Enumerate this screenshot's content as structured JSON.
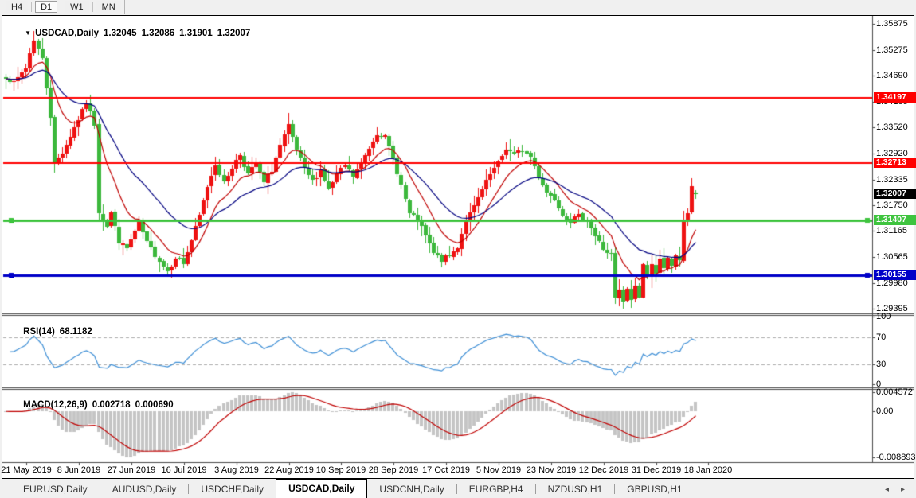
{
  "toolbar": {
    "timeframes": [
      {
        "label": "H4",
        "active": false
      },
      {
        "label": "D1",
        "active": true
      },
      {
        "label": "W1",
        "active": false
      },
      {
        "label": "MN",
        "active": false
      }
    ]
  },
  "chart_title": {
    "dropdown_icon": "▼",
    "symbol": "USDCAD,Daily",
    "open": "1.32045",
    "high": "1.32086",
    "low": "1.31901",
    "close": "1.32007"
  },
  "chart_data": [
    {
      "type": "candlestick",
      "symbol": "USDCAD",
      "timeframe": "Daily",
      "displayed_ohlc": {
        "open": 1.32045,
        "high": 1.32086,
        "low": 1.31901,
        "close": 1.32007
      },
      "y_ticks": [
        "1.35875",
        "1.35275",
        "1.34690",
        "1.34105",
        "1.33520",
        "1.32920",
        "1.32335",
        "1.31750",
        "1.31165",
        "1.30565",
        "1.29980",
        "1.29395"
      ],
      "ylim": [
        1.2925,
        1.3607
      ],
      "x_tick_dates": [
        "21 May 2019",
        "8 Jun 2019",
        "27 Jun 2019",
        "16 Jul 2019",
        "3 Aug 2019",
        "22 Aug 2019",
        "10 Sep 2019",
        "28 Sep 2019",
        "17 Oct 2019",
        "5 Nov 2019",
        "23 Nov 2019",
        "12 Dec 2019",
        "31 Dec 2019",
        "18 Jan 2020"
      ],
      "levels": [
        {
          "label": "1.34197",
          "price": 1.34197,
          "color": "#FF0000",
          "width": 2,
          "handles": false
        },
        {
          "label": "1.32713",
          "price": 1.32713,
          "color": "#FF0000",
          "width": 2,
          "handles": false
        },
        {
          "label": "1.31407",
          "price": 1.31407,
          "color": "#3FC43F",
          "width": 3,
          "handles": true
        },
        {
          "label": "1.30155",
          "price": 1.30155,
          "color": "#0000C8",
          "width": 3,
          "handles": true
        }
      ],
      "current_price": {
        "label": "1.32007",
        "price": 1.32007,
        "badge_color": "#000000"
      },
      "candle_count": 172,
      "colors": {
        "bull": "#EE1212",
        "bear": "#3CB83C",
        "ma_fast": "#C00000",
        "ma_slow": "#000080"
      },
      "ma_estimated_periods": {
        "fast": 10,
        "slow": 25
      },
      "grid": false,
      "noise_seed": 7,
      "close_path_anchors": [
        [
          0,
          1.3468
        ],
        [
          2,
          1.3452
        ],
        [
          5,
          1.3488
        ],
        [
          7,
          1.3553
        ],
        [
          9,
          1.3508
        ],
        [
          11,
          1.3378
        ],
        [
          12,
          1.327
        ],
        [
          14,
          1.3295
        ],
        [
          17,
          1.3352
        ],
        [
          20,
          1.3408
        ],
        [
          22,
          1.336
        ],
        [
          23,
          1.316
        ],
        [
          25,
          1.3128
        ],
        [
          26,
          1.3158
        ],
        [
          28,
          1.3092
        ],
        [
          30,
          1.3076
        ],
        [
          33,
          1.3135
        ],
        [
          35,
          1.3088
        ],
        [
          38,
          1.305
        ],
        [
          40,
          1.3025
        ],
        [
          42,
          1.3058
        ],
        [
          44,
          1.3042
        ],
        [
          46,
          1.3095
        ],
        [
          48,
          1.315
        ],
        [
          50,
          1.3218
        ],
        [
          52,
          1.327
        ],
        [
          54,
          1.3225
        ],
        [
          56,
          1.3262
        ],
        [
          58,
          1.329
        ],
        [
          60,
          1.3245
        ],
        [
          62,
          1.327
        ],
        [
          64,
          1.3225
        ],
        [
          66,
          1.3255
        ],
        [
          68,
          1.331
        ],
        [
          70,
          1.3355
        ],
        [
          72,
          1.33
        ],
        [
          74,
          1.3255
        ],
        [
          76,
          1.323
        ],
        [
          78,
          1.3255
        ],
        [
          80,
          1.321
        ],
        [
          82,
          1.3245
        ],
        [
          84,
          1.3265
        ],
        [
          86,
          1.324
        ],
        [
          88,
          1.327
        ],
        [
          90,
          1.3305
        ],
        [
          92,
          1.334
        ],
        [
          94,
          1.333
        ],
        [
          96,
          1.328
        ],
        [
          98,
          1.322
        ],
        [
          100,
          1.3155
        ],
        [
          102,
          1.314
        ],
        [
          104,
          1.3105
        ],
        [
          106,
          1.3065
        ],
        [
          108,
          1.305
        ],
        [
          110,
          1.306
        ],
        [
          112,
          1.308
        ],
        [
          114,
          1.314
        ],
        [
          116,
          1.317
        ],
        [
          118,
          1.321
        ],
        [
          120,
          1.3245
        ],
        [
          122,
          1.327
        ],
        [
          124,
          1.3305
        ],
        [
          126,
          1.329
        ],
        [
          128,
          1.33
        ],
        [
          130,
          1.3285
        ],
        [
          132,
          1.324
        ],
        [
          134,
          1.3205
        ],
        [
          136,
          1.319
        ],
        [
          138,
          1.3155
        ],
        [
          140,
          1.314
        ],
        [
          142,
          1.315
        ],
        [
          144,
          1.3142
        ],
        [
          146,
          1.3105
        ],
        [
          148,
          1.3075
        ],
        [
          150,
          1.3062
        ],
        [
          151,
          1.2962
        ],
        [
          152,
          1.298
        ],
        [
          153,
          1.2955
        ],
        [
          154,
          1.2982
        ],
        [
          155,
          1.296
        ],
        [
          156,
          1.2992
        ],
        [
          157,
          1.2968
        ],
        [
          158,
          1.304
        ],
        [
          159,
          1.3008
        ],
        [
          160,
          1.3045
        ],
        [
          161,
          1.3022
        ],
        [
          162,
          1.305
        ],
        [
          163,
          1.3028
        ],
        [
          164,
          1.3052
        ],
        [
          165,
          1.3038
        ],
        [
          166,
          1.3062
        ],
        [
          167,
          1.3045
        ],
        [
          168,
          1.314
        ],
        [
          169,
          1.3158
        ],
        [
          170,
          1.3218
        ],
        [
          171,
          1.32007
        ]
      ],
      "wick_extremes": [
        {
          "i": 7,
          "high": 1.3572
        },
        {
          "i": 40,
          "low": 1.3013
        },
        {
          "i": 70,
          "high": 1.3385
        },
        {
          "i": 92,
          "high": 1.3352
        },
        {
          "i": 108,
          "low": 1.3034
        },
        {
          "i": 151,
          "low": 1.295
        },
        {
          "i": 153,
          "low": 1.294
        },
        {
          "i": 170,
          "high": 1.3237
        }
      ]
    },
    {
      "type": "line",
      "indicator": "RSI",
      "label": "RSI(14)",
      "period": 14,
      "displayed_value": "68.1182",
      "levels": [
        70,
        30
      ],
      "y_ticks": [
        "100",
        "70",
        "30",
        "0"
      ],
      "y_tick_values": [
        100,
        70,
        30,
        0
      ],
      "ylim": [
        0,
        100
      ],
      "line_color": "#3E8FD6",
      "grid": "dashed-level-lines"
    },
    {
      "type": "macd",
      "indicator": "MACD",
      "label": "MACD(12,26,9)",
      "params": [
        12,
        26,
        9
      ],
      "displayed_main": "0.002718",
      "displayed_signal": "0.000690",
      "y_ticks": [
        "0.004572",
        "0.00",
        "-0.008893"
      ],
      "ylim": [
        -0.008893,
        0.004572
      ],
      "histogram_color": "#C5C5C5",
      "signal_color": "#C00000"
    }
  ],
  "tabs": {
    "items": [
      {
        "label": "EURUSD,Daily",
        "active": false
      },
      {
        "label": "AUDUSD,Daily",
        "active": false
      },
      {
        "label": "USDCHF,Daily",
        "active": false
      },
      {
        "label": "USDCAD,Daily",
        "active": true
      },
      {
        "label": "USDCNH,Daily",
        "active": false
      },
      {
        "label": "EURGBP,H4",
        "active": false
      },
      {
        "label": "NZDUSD,H1",
        "active": false
      },
      {
        "label": "GBPUSD,H1",
        "active": false
      }
    ],
    "nav": [
      {
        "name": "scroll-left-icon",
        "glyph": "◂"
      },
      {
        "name": "scroll-right-icon",
        "glyph": "▸"
      }
    ]
  }
}
